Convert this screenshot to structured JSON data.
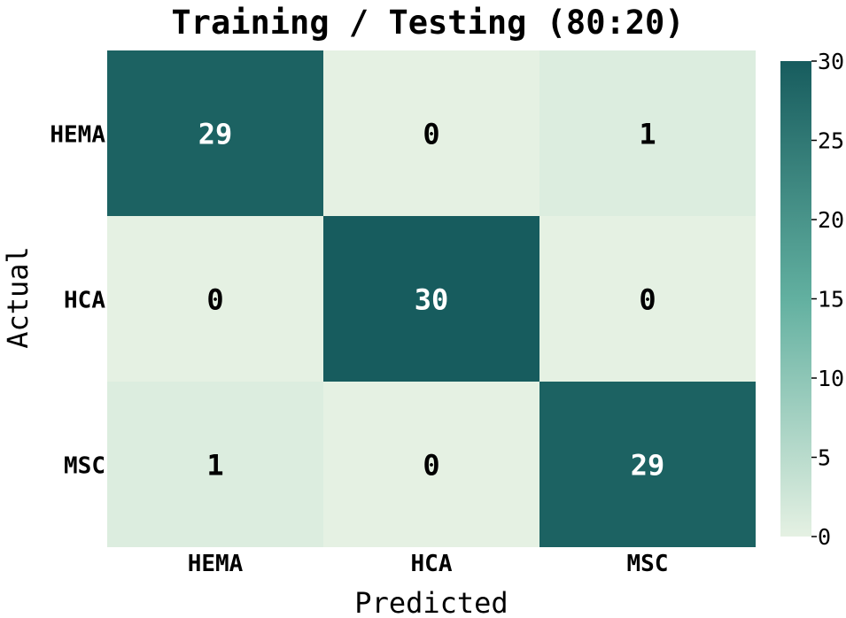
{
  "chart_data": {
    "type": "heatmap",
    "title": "Training / Testing (80:20)",
    "xlabel": "Predicted",
    "ylabel": "Actual",
    "x_categories": [
      "HEMA",
      "HCA",
      "MSC"
    ],
    "y_categories": [
      "HEMA",
      "HCA",
      "MSC"
    ],
    "matrix": [
      [
        29,
        0,
        1
      ],
      [
        0,
        30,
        0
      ],
      [
        1,
        0,
        29
      ]
    ],
    "colorbar": {
      "range": [
        0,
        30
      ],
      "ticks": [
        0,
        5,
        10,
        15,
        20,
        25,
        30
      ]
    },
    "colors": {
      "low": "#e5f1e3",
      "high": "#175c5e",
      "text_dark": "#000000",
      "text_light": "#ffffff"
    }
  }
}
